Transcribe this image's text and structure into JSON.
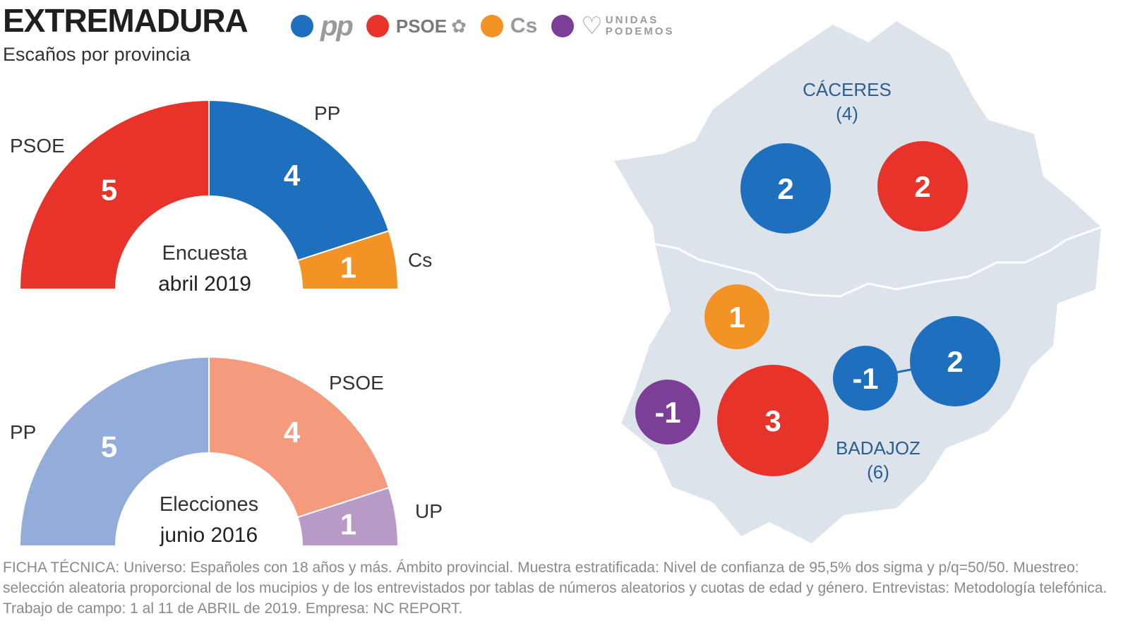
{
  "header": {
    "title": "EXTREMADURA",
    "subtitle": "Escaños por provincia"
  },
  "legend": [
    {
      "key": "pp",
      "label": "pp",
      "color": "#1f6fbf",
      "icon": "pp-logo"
    },
    {
      "key": "psoe",
      "label": "PSOE",
      "color": "#e8332a",
      "icon": "psoe-rose-icon"
    },
    {
      "key": "cs",
      "label": "Cs",
      "color": "#f39325",
      "icon": "cs-logo"
    },
    {
      "key": "up",
      "label_line1": "UNIDAS",
      "label_line2": "PODEMOS",
      "color": "#7b3f98",
      "icon": "podemos-heart-icon"
    }
  ],
  "chart_data": [
    {
      "type": "pie",
      "variant": "half-donut",
      "title_line1": "Encuesta",
      "title_line2": "abril 2019",
      "slices": [
        {
          "label": "PSOE",
          "value": 5,
          "color": "#e8332a"
        },
        {
          "label": "PP",
          "value": 4,
          "color": "#1f6fbf"
        },
        {
          "label": "Cs",
          "value": 1,
          "color": "#f39325"
        }
      ]
    },
    {
      "type": "pie",
      "variant": "half-donut",
      "title_line1": "Elecciones",
      "title_line2": "junio 2016",
      "slices": [
        {
          "label": "PP",
          "value": 5,
          "color": "#93acd9"
        },
        {
          "label": "PSOE",
          "value": 4,
          "color": "#f59a7c"
        },
        {
          "label": "UP",
          "value": 1,
          "color": "#b89ac6"
        }
      ]
    },
    {
      "type": "map",
      "provinces": [
        {
          "name": "CÁCERES",
          "seats": "(4)"
        },
        {
          "name": "BADAJOZ",
          "seats": "(6)"
        }
      ],
      "bubbles": [
        {
          "province": "CÁCERES",
          "party": "PP",
          "label": "2",
          "color": "#1f6fbf"
        },
        {
          "province": "CÁCERES",
          "party": "PSOE",
          "label": "2",
          "color": "#e8332a"
        },
        {
          "province": "BADAJOZ",
          "party": "Cs",
          "label": "1",
          "color": "#f39325"
        },
        {
          "province": "BADAJOZ",
          "party": "PP",
          "label": "-1",
          "color": "#1f6fbf"
        },
        {
          "province": "BADAJOZ",
          "party": "PP",
          "label": "2",
          "color": "#1f6fbf"
        },
        {
          "province": "BADAJOZ",
          "party": "UP",
          "label": "-1",
          "color": "#7b3f98"
        },
        {
          "province": "BADAJOZ",
          "party": "PSOE",
          "label": "3",
          "color": "#e8332a"
        }
      ]
    }
  ],
  "footnote": "FICHA TÉCNICA: Universo: Españoles con 18 años y más. Ámbito provincial. Muestra estratificada: Nivel de confianza de 95,5% dos sigma y p/q=50/50. Muestreo: selección aleatoria proporcional de los mucipios y de los entrevistados por tablas de números aleatorios y cuotas de edad y género. Entrevistas: Metodología telefónica. Trabajo de campo: 1 al 11 de ABRIL de 2019. Empresa: NC REPORT."
}
